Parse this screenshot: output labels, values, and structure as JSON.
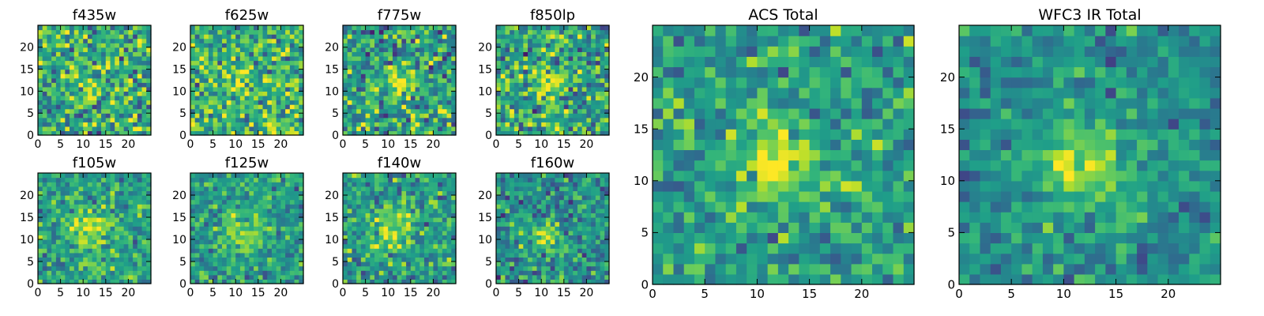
{
  "figure": {
    "background": "#ffffff",
    "colormap": "viridis"
  },
  "chart_data": [
    {
      "type": "heatmap",
      "title": "f435w",
      "xlim": [
        0,
        25
      ],
      "ylim": [
        0,
        25
      ],
      "xticks": [
        0,
        5,
        10,
        15,
        20
      ],
      "yticks": [
        0,
        5,
        10,
        15,
        20
      ],
      "grid_size": [
        25,
        25
      ],
      "origin": "lower",
      "grid": false,
      "legend": "none",
      "signal": {
        "center": [
          12,
          11
        ],
        "sigma": 3.0,
        "amplitude": 0.05
      },
      "noise": {
        "level": 0.55,
        "seed": 101
      },
      "base_level": 0.62
    },
    {
      "type": "heatmap",
      "title": "f625w",
      "xlim": [
        0,
        25
      ],
      "ylim": [
        0,
        25
      ],
      "xticks": [
        0,
        5,
        10,
        15,
        20
      ],
      "yticks": [
        0,
        5,
        10,
        15,
        20
      ],
      "grid_size": [
        25,
        25
      ],
      "origin": "lower",
      "grid": false,
      "legend": "none",
      "signal": {
        "center": [
          12,
          12
        ],
        "sigma": 2.6,
        "amplitude": 0.12
      },
      "noise": {
        "level": 0.5,
        "seed": 202
      },
      "base_level": 0.66
    },
    {
      "type": "heatmap",
      "title": "f775w",
      "xlim": [
        0,
        25
      ],
      "ylim": [
        0,
        25
      ],
      "xticks": [
        0,
        5,
        10,
        15,
        20
      ],
      "yticks": [
        0,
        5,
        10,
        15,
        20
      ],
      "grid_size": [
        25,
        25
      ],
      "origin": "lower",
      "grid": false,
      "legend": "none",
      "signal": {
        "center": [
          12.5,
          12
        ],
        "sigma": 2.4,
        "amplitude": 0.35
      },
      "noise": {
        "level": 0.5,
        "seed": 303
      },
      "base_level": 0.56
    },
    {
      "type": "heatmap",
      "title": "f850lp",
      "xlim": [
        0,
        25
      ],
      "ylim": [
        0,
        25
      ],
      "xticks": [
        0,
        5,
        10,
        15,
        20
      ],
      "yticks": [
        0,
        5,
        10,
        15,
        20
      ],
      "grid_size": [
        25,
        25
      ],
      "origin": "lower",
      "grid": false,
      "legend": "none",
      "signal": {
        "center": [
          12,
          12
        ],
        "sigma": 2.4,
        "amplitude": 0.3
      },
      "noise": {
        "level": 0.5,
        "seed": 404
      },
      "base_level": 0.58
    },
    {
      "type": "heatmap",
      "title": "ACS Total",
      "xlim": [
        0,
        25
      ],
      "ylim": [
        0,
        25
      ],
      "xticks": [
        0,
        5,
        10,
        15,
        20
      ],
      "yticks": [
        0,
        5,
        10,
        15,
        20
      ],
      "grid_size": [
        25,
        25
      ],
      "origin": "lower",
      "grid": false,
      "legend": "none",
      "signal": {
        "center": [
          12,
          11.5
        ],
        "sigma": 2.3,
        "amplitude": 0.42
      },
      "noise": {
        "level": 0.38,
        "seed": 505
      },
      "base_level": 0.55
    },
    {
      "type": "heatmap",
      "title": "f105w",
      "xlim": [
        0,
        25
      ],
      "ylim": [
        0,
        25
      ],
      "xticks": [
        0,
        5,
        10,
        15,
        20
      ],
      "yticks": [
        0,
        5,
        10,
        15,
        20
      ],
      "grid_size": [
        25,
        25
      ],
      "origin": "lower",
      "grid": false,
      "legend": "none",
      "signal": {
        "center": [
          11,
          12
        ],
        "sigma": 3.2,
        "amplitude": 0.3
      },
      "noise": {
        "level": 0.38,
        "seed": 606
      },
      "base_level": 0.58
    },
    {
      "type": "heatmap",
      "title": "f125w",
      "xlim": [
        0,
        25
      ],
      "ylim": [
        0,
        25
      ],
      "xticks": [
        0,
        5,
        10,
        15,
        20
      ],
      "yticks": [
        0,
        5,
        10,
        15,
        20
      ],
      "grid_size": [
        25,
        25
      ],
      "origin": "lower",
      "grid": false,
      "legend": "none",
      "signal": {
        "center": [
          12,
          11
        ],
        "sigma": 3.4,
        "amplitude": 0.3
      },
      "noise": {
        "level": 0.36,
        "seed": 707
      },
      "base_level": 0.55
    },
    {
      "type": "heatmap",
      "title": "f140w",
      "xlim": [
        0,
        25
      ],
      "ylim": [
        0,
        25
      ],
      "xticks": [
        0,
        5,
        10,
        15,
        20
      ],
      "yticks": [
        0,
        5,
        10,
        15,
        20
      ],
      "grid_size": [
        25,
        25
      ],
      "origin": "lower",
      "grid": false,
      "legend": "none",
      "signal": {
        "center": [
          11,
          12
        ],
        "sigma": 3.6,
        "amplitude": 0.32
      },
      "noise": {
        "level": 0.4,
        "seed": 808
      },
      "base_level": 0.55
    },
    {
      "type": "heatmap",
      "title": "f160w",
      "xlim": [
        0,
        25
      ],
      "ylim": [
        0,
        25
      ],
      "xticks": [
        0,
        5,
        10,
        15,
        20
      ],
      "yticks": [
        0,
        5,
        10,
        15,
        20
      ],
      "grid_size": [
        25,
        25
      ],
      "origin": "lower",
      "grid": false,
      "legend": "none",
      "signal": {
        "center": [
          11,
          11
        ],
        "sigma": 2.2,
        "amplitude": 0.35
      },
      "noise": {
        "level": 0.42,
        "seed": 909
      },
      "base_level": 0.5
    },
    {
      "type": "heatmap",
      "title": "WFC3 IR Total",
      "xlim": [
        0,
        25
      ],
      "ylim": [
        0,
        25
      ],
      "xticks": [
        0,
        5,
        10,
        15,
        20
      ],
      "yticks": [
        0,
        5,
        10,
        15,
        20
      ],
      "grid_size": [
        25,
        25
      ],
      "origin": "lower",
      "grid": false,
      "legend": "none",
      "signal": {
        "center": [
          12,
          11.5
        ],
        "sigma": 2.8,
        "amplitude": 0.42
      },
      "noise": {
        "level": 0.3,
        "seed": 1010
      },
      "base_level": 0.5
    }
  ]
}
